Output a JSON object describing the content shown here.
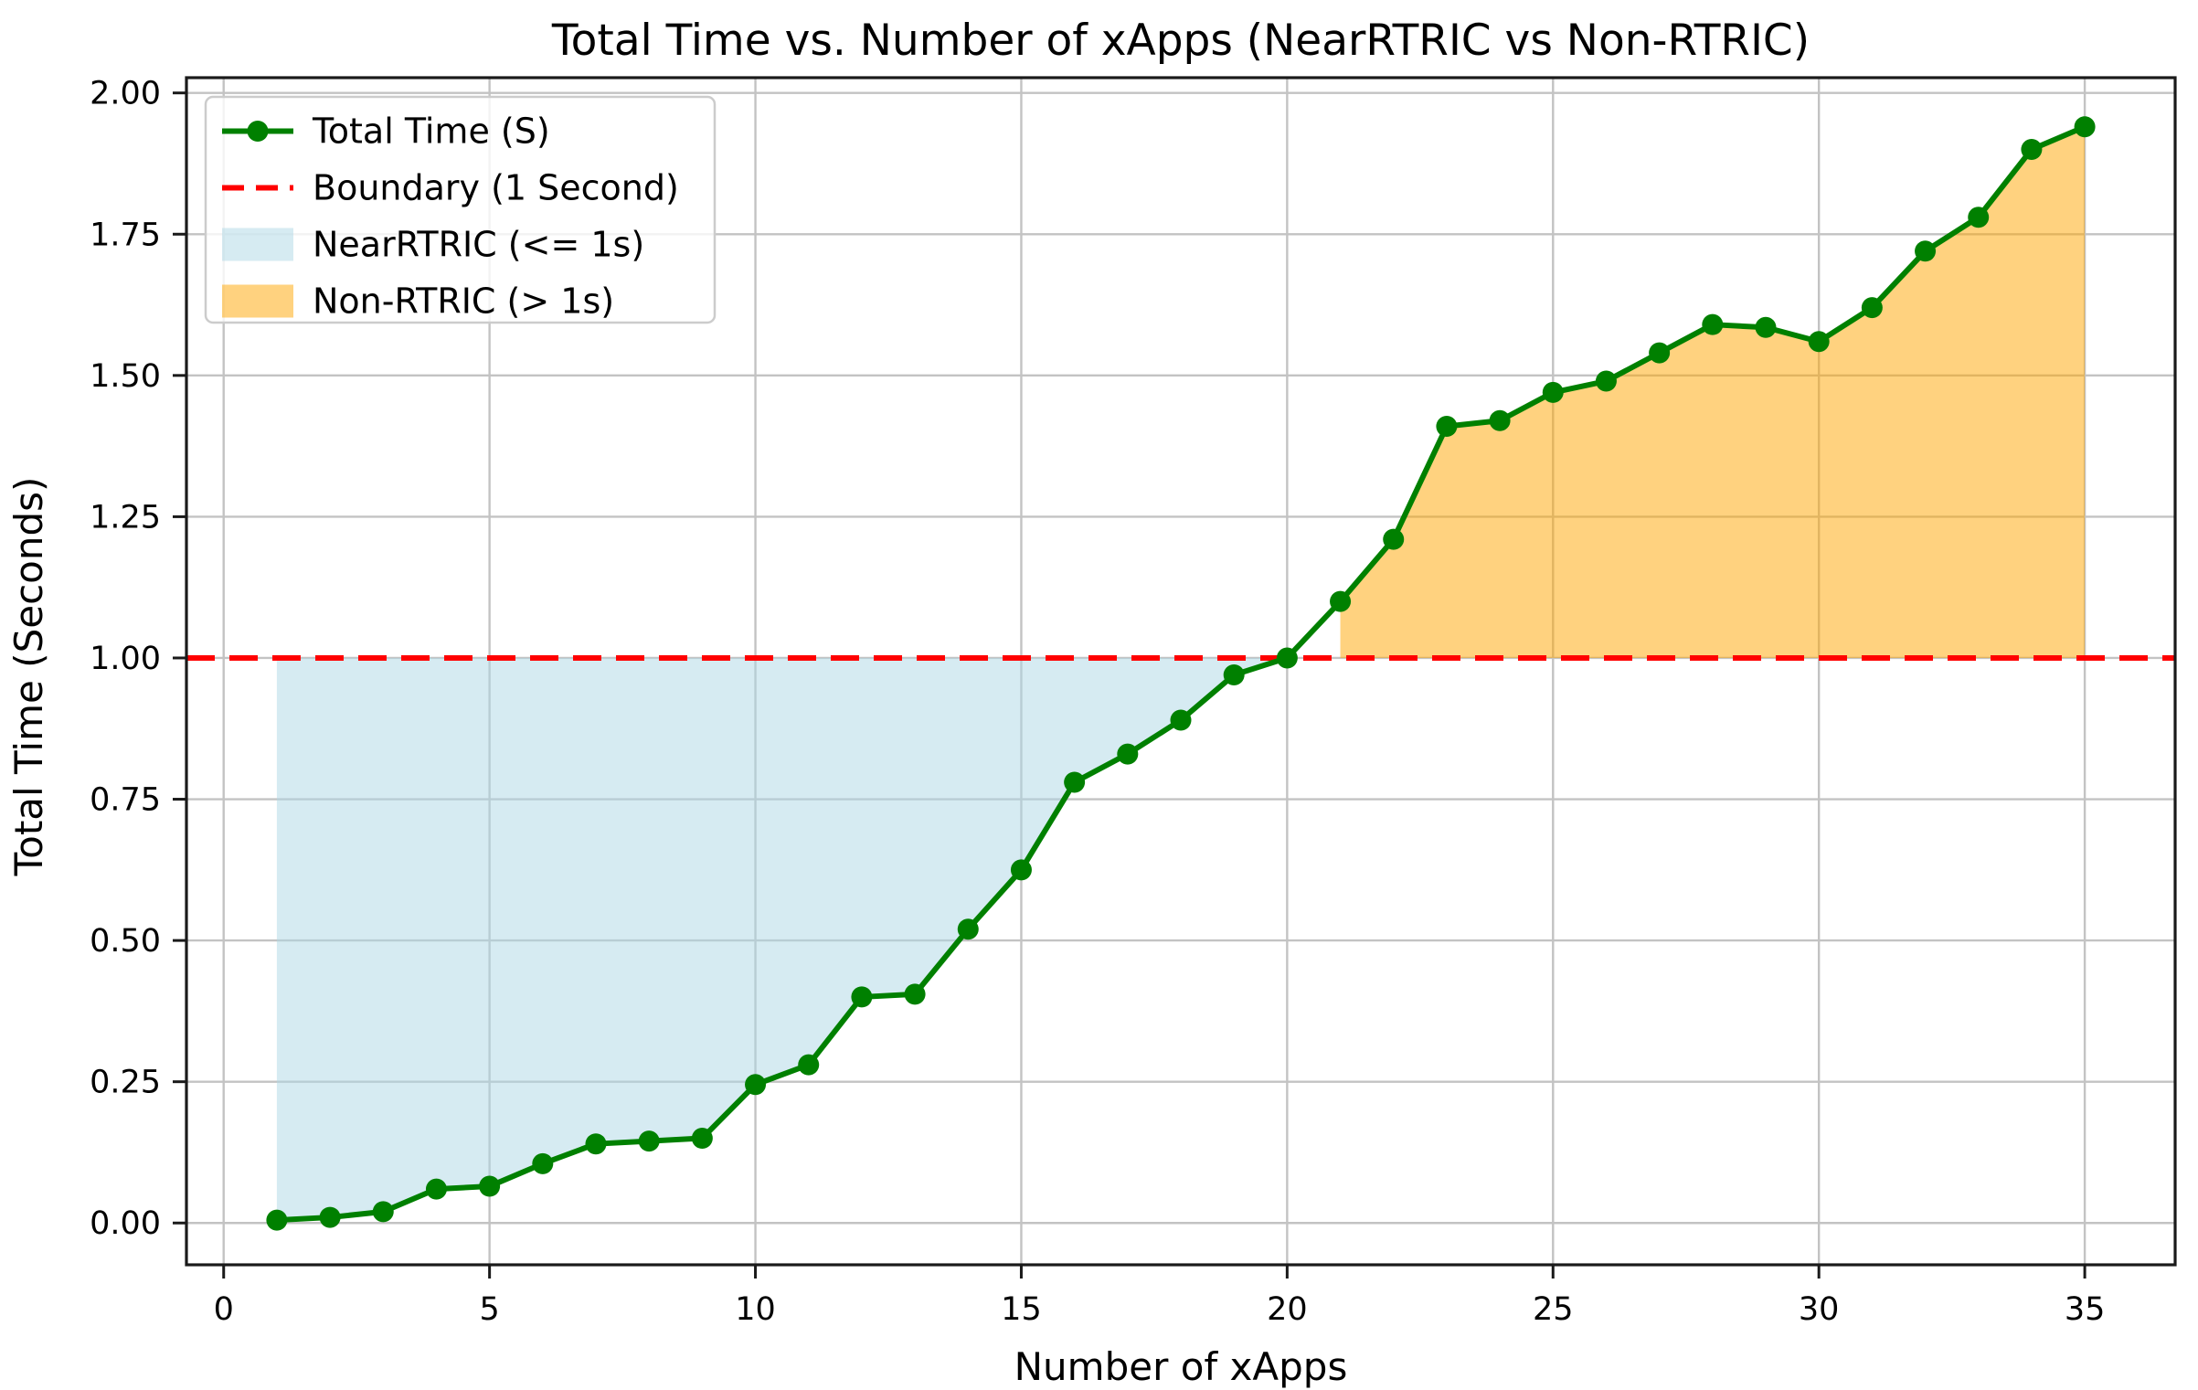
{
  "chart_data": {
    "type": "line",
    "title": "Total Time vs. Number of xApps (NearRTRIC vs Non-RTRIC)",
    "xlabel": "Number of xApps",
    "ylabel": "Total Time (Seconds)",
    "x": [
      1,
      2,
      3,
      4,
      5,
      6,
      7,
      8,
      9,
      10,
      11,
      12,
      13,
      14,
      15,
      16,
      17,
      18,
      19,
      20,
      21,
      22,
      23,
      24,
      25,
      26,
      27,
      28,
      29,
      30,
      31,
      32,
      33,
      34,
      35
    ],
    "series": [
      {
        "name": "Total Time (S)",
        "marker": "circle",
        "values": [
          0.005,
          0.01,
          0.02,
          0.06,
          0.065,
          0.105,
          0.14,
          0.145,
          0.15,
          0.245,
          0.28,
          0.4,
          0.405,
          0.52,
          0.625,
          0.78,
          0.83,
          0.89,
          0.97,
          1.0,
          1.1,
          1.21,
          1.41,
          1.42,
          1.47,
          1.49,
          1.54,
          1.59,
          1.585,
          1.56,
          1.62,
          1.72,
          1.78,
          1.9,
          1.94
        ]
      }
    ],
    "boundary": {
      "label": "Boundary (1 Second)",
      "value": 1.0,
      "style": "dashed"
    },
    "regions": [
      {
        "label": "NearRTRIC (<= 1s)",
        "x_range": [
          1,
          20
        ],
        "side": "below-boundary"
      },
      {
        "label": "Non-RTRIC (> 1s)",
        "x_range": [
          21,
          35
        ],
        "side": "above-boundary"
      }
    ],
    "xticks": [
      "0",
      "5",
      "10",
      "15",
      "20",
      "25",
      "30",
      "35"
    ],
    "yticks": [
      "0.00",
      "0.25",
      "0.50",
      "0.75",
      "1.00",
      "1.25",
      "1.50",
      "1.75",
      "2.00"
    ],
    "xlim": [
      -0.7,
      36.7
    ],
    "ylim": [
      -0.074,
      2.027
    ],
    "grid": true,
    "legend_position": "upper left",
    "colors": {
      "line": "#008000",
      "boundary": "#ff0000",
      "near_fill": "#add8e6",
      "non_fill": "#ffa500",
      "fill_opacity": 0.5,
      "grid": "#c3c3c3",
      "spine": "#1a1a1a",
      "text": "#000000",
      "legend_border": "#cccccc"
    },
    "legend": {
      "entries": [
        {
          "label": "Total Time (S)",
          "type": "line-marker",
          "color_key": "line"
        },
        {
          "label": "Boundary (1 Second)",
          "type": "dashed-line",
          "color_key": "boundary"
        },
        {
          "label": "NearRTRIC (<= 1s)",
          "type": "patch",
          "color_key": "near_fill"
        },
        {
          "label": "Non-RTRIC (> 1s)",
          "type": "patch",
          "color_key": "non_fill"
        }
      ]
    }
  }
}
